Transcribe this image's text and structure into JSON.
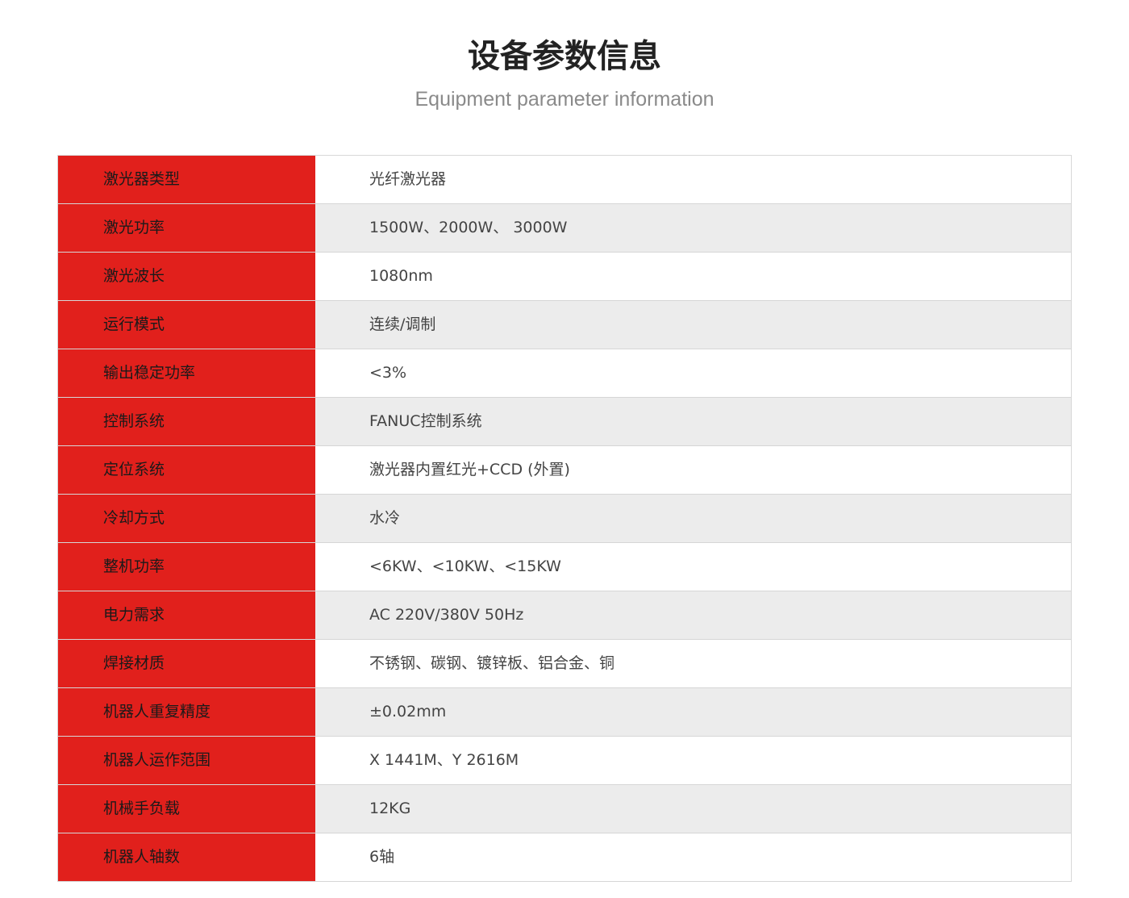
{
  "header": {
    "title": "设备参数信息",
    "subtitle": "Equipment parameter information"
  },
  "colors": {
    "label_bg": "#e1201c",
    "stripe_bg": "#ececec"
  },
  "rows": [
    {
      "label": "激光器类型",
      "value": "光纤激光器"
    },
    {
      "label": "激光功率",
      "value": "1500W、2000W、 3000W"
    },
    {
      "label": "激光波长",
      "value": "1080nm"
    },
    {
      "label": "运行模式",
      "value": "连续/调制"
    },
    {
      "label": "输出稳定功率",
      "value": "<3%"
    },
    {
      "label": "控制系统",
      "value": "FANUC控制系统"
    },
    {
      "label": "定位系统",
      "value": "激光器内置红光+CCD (外置)"
    },
    {
      "label": "冷却方式",
      "value": "水冷"
    },
    {
      "label": "整机功率",
      "value": "<6KW、<10KW、<15KW"
    },
    {
      "label": "电力需求",
      "value": "AC 220V/380V 50Hz"
    },
    {
      "label": "焊接材质",
      "value": "不锈钢、碳钢、镀锌板、铝合金、铜"
    },
    {
      "label": "机器人重复精度",
      "value": "±0.02mm"
    },
    {
      "label": "机器人运作范围",
      "value": "X 1441M、Y 2616M"
    },
    {
      "label": "机械手负载",
      "value": "12KG"
    },
    {
      "label": "机器人轴数",
      "value": "6轴"
    }
  ]
}
